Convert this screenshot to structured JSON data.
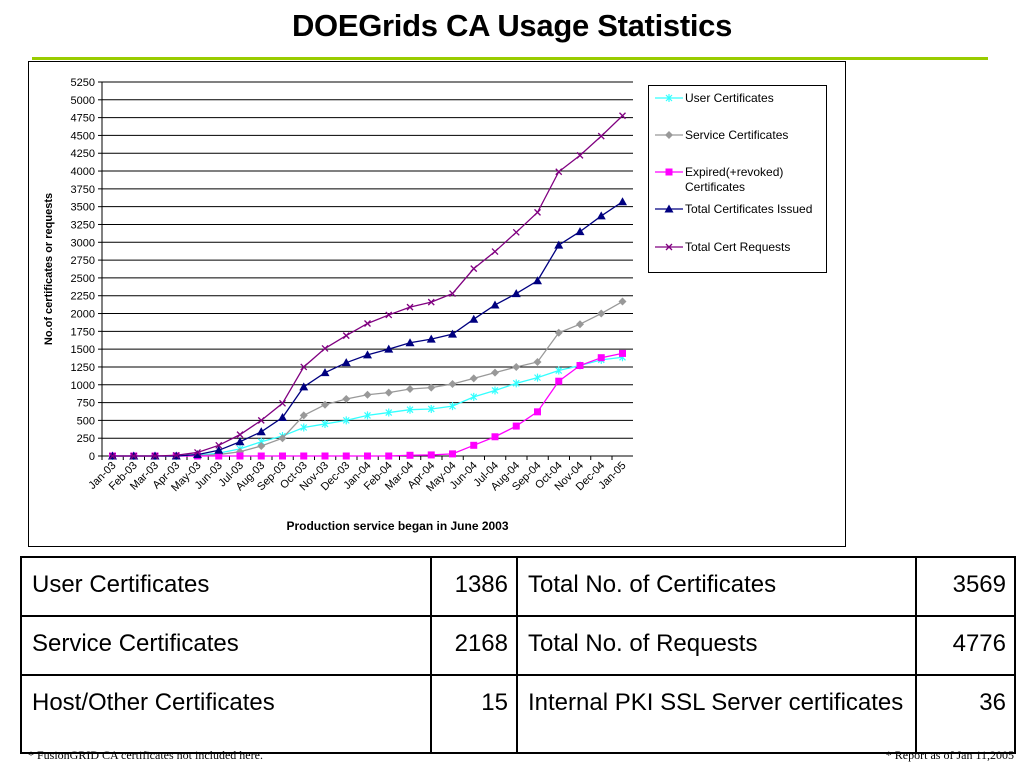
{
  "title": "DOEGrids CA Usage Statistics",
  "accent_color": "#99cc00",
  "chart_data": {
    "type": "line",
    "ylabel": "No.of certificates or requests",
    "xlabel": "Production service began in June 2003",
    "ylim": [
      0,
      5250
    ],
    "y_ticks": [
      0,
      250,
      500,
      750,
      1000,
      1250,
      1500,
      1750,
      2000,
      2250,
      2500,
      2750,
      3000,
      3250,
      3500,
      3750,
      4000,
      4250,
      4500,
      4750,
      5000,
      5250
    ],
    "grid": "horizontal",
    "legend_position": "right",
    "categories": [
      "Jan-03",
      "Feb-03",
      "Mar-03",
      "Apr-03",
      "May-03",
      "Jun-03",
      "Jul-03",
      "Aug-03",
      "Sep-03",
      "Oct-03",
      "Nov-03",
      "Dec-03",
      "Jan-04",
      "Feb-04",
      "Mar-04",
      "Apr-04",
      "May-04",
      "Jun-04",
      "Jul-04",
      "Aug-04",
      "Sep-04",
      "Oct-04",
      "Nov-04",
      "Dec-04",
      "Jan-05"
    ],
    "series": [
      {
        "name": "User Certificates",
        "color": "#33ffff",
        "marker": "star",
        "values": [
          0,
          0,
          0,
          0,
          10,
          40,
          100,
          200,
          280,
          400,
          450,
          500,
          570,
          610,
          650,
          660,
          700,
          830,
          920,
          1020,
          1100,
          1200,
          1270,
          1350,
          1386
        ]
      },
      {
        "name": "Service Certificates",
        "color": "#999999",
        "marker": "diamond",
        "values": [
          0,
          0,
          0,
          0,
          5,
          20,
          60,
          140,
          250,
          570,
          720,
          800,
          860,
          890,
          940,
          960,
          1010,
          1090,
          1170,
          1250,
          1320,
          1730,
          1850,
          2000,
          2168
        ]
      },
      {
        "name": "Expired(+revoked) Certificates",
        "color": "#ff00ff",
        "marker": "square",
        "values": [
          0,
          0,
          0,
          0,
          0,
          0,
          0,
          0,
          0,
          0,
          0,
          0,
          0,
          0,
          10,
          15,
          30,
          150,
          270,
          420,
          620,
          1050,
          1270,
          1380,
          1440
        ]
      },
      {
        "name": "Total Certificates Issued",
        "color": "#000080",
        "marker": "triangle",
        "values": [
          0,
          0,
          0,
          0,
          20,
          80,
          200,
          340,
          540,
          970,
          1170,
          1310,
          1420,
          1500,
          1590,
          1640,
          1710,
          1920,
          2120,
          2280,
          2460,
          2960,
          3150,
          3370,
          3569
        ]
      },
      {
        "name": "Total Cert Requests",
        "color": "#800080",
        "marker": "x",
        "values": [
          0,
          0,
          0,
          10,
          50,
          150,
          300,
          500,
          740,
          1250,
          1510,
          1690,
          1860,
          1980,
          2090,
          2160,
          2280,
          2630,
          2870,
          3140,
          3420,
          3990,
          4220,
          4490,
          4776
        ]
      }
    ]
  },
  "stats_table": {
    "rows": [
      {
        "label1": "User Certificates",
        "value1": "1386",
        "label2": "Total No. of Certificates",
        "value2": "3569"
      },
      {
        "label1": "Service Certificates",
        "value1": "2168",
        "label2": "Total No. of Requests",
        "value2": "4776"
      },
      {
        "label1": "Host/Other Certificates",
        "value1": "15",
        "label2": "Internal PKI SSL Server certificates",
        "value2": "36"
      }
    ]
  },
  "footnotes": {
    "left": "* FusionGRID CA certificates not included here.",
    "right": "* Report as of Jan 11,2005"
  }
}
